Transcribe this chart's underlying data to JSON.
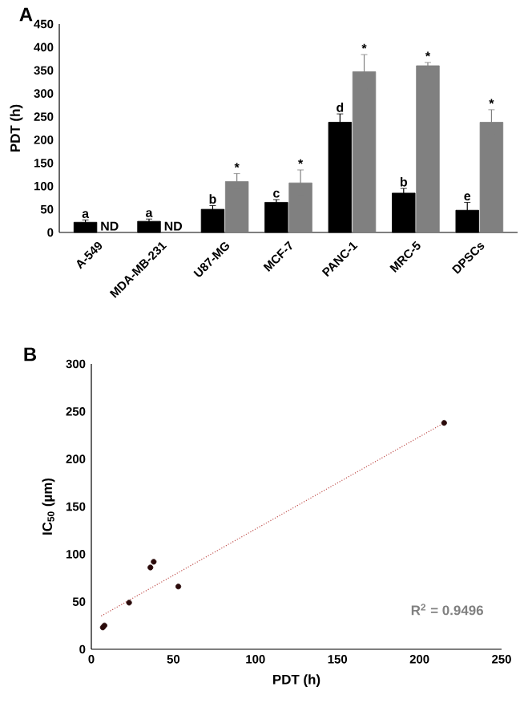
{
  "chart_data": [
    {
      "type": "bar",
      "title": "A",
      "ylabel": "PDT (h)",
      "categories": [
        "A-549",
        "MDA-MB-231",
        "U87-MG",
        "MCF-7",
        "PANC-1",
        "MRC-5",
        "DPSCs"
      ],
      "ylim": [
        0,
        450
      ],
      "yticks": [
        0,
        50,
        100,
        150,
        200,
        250,
        300,
        350,
        400,
        450
      ],
      "grid": false,
      "series": [
        {
          "color": "#000000",
          "values": [
            22,
            24,
            50,
            65,
            238,
            85,
            48
          ],
          "errors": [
            5,
            5,
            8,
            6,
            18,
            10,
            17
          ],
          "value_labels": [
            "a",
            "a",
            "b",
            "c",
            "d",
            "b",
            "e"
          ]
        },
        {
          "color": "#808080",
          "values": [
            null,
            null,
            110,
            107,
            347,
            360,
            238
          ],
          "errors": [
            null,
            null,
            17,
            28,
            37,
            7,
            27
          ],
          "value_labels": [
            "ND",
            "ND",
            "*",
            "*",
            "*",
            "*",
            "*"
          ]
        }
      ]
    },
    {
      "type": "scatter",
      "title": "B",
      "xlabel": "PDT (h)",
      "ylabel": "IC$_{50}$ (µm)",
      "xlim": [
        0,
        250
      ],
      "ylim": [
        0,
        300
      ],
      "xticks": [
        0,
        50,
        100,
        150,
        200,
        250
      ],
      "yticks": [
        0,
        50,
        100,
        150,
        200,
        250,
        300
      ],
      "grid": false,
      "annotations": [
        "R$^{2}$ = 0.9496"
      ],
      "series": [
        {
          "color": "#2a0a0a",
          "marker": "circle",
          "x": [
            7,
            8,
            23,
            36,
            38,
            53,
            215
          ],
          "values": [
            23,
            25,
            49,
            86,
            92,
            66,
            238
          ]
        },
        {
          "type": "line",
          "color": "#c0504d",
          "line_style": "dotted",
          "marker": "none",
          "x": [
            6,
            215
          ],
          "values": [
            35,
            238
          ]
        }
      ]
    }
  ]
}
